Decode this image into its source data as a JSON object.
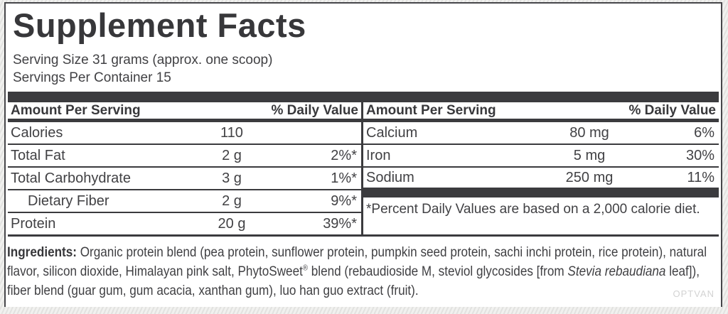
{
  "title": "Supplement Facts",
  "serving": {
    "size": "Serving Size 31 grams (approx. one scoop)",
    "per_container": "Servings Per Container 15"
  },
  "tables": {
    "left": {
      "header": {
        "amount": "Amount Per Serving",
        "daily_value": "% Daily Value"
      },
      "rows": [
        {
          "name": "Calories",
          "amount": "110",
          "dv": ""
        },
        {
          "name": "Total Fat",
          "amount": "2 g",
          "dv": "2%*"
        },
        {
          "name": "Total Carbohydrate",
          "amount": "3 g",
          "dv": "1%*"
        },
        {
          "name": "Dietary Fiber",
          "amount": "2 g",
          "dv": "9%*",
          "indent": true
        },
        {
          "name": "Protein",
          "amount": "20 g",
          "dv": "39%*"
        }
      ]
    },
    "right": {
      "header": {
        "amount": "Amount Per Serving",
        "daily_value": "% Daily Value"
      },
      "rows": [
        {
          "name": "Calcium",
          "amount": "80 mg",
          "dv": "6%"
        },
        {
          "name": "Iron",
          "amount": "5 mg",
          "dv": "30%"
        },
        {
          "name": "Sodium",
          "amount": "250 mg",
          "dv": "11%"
        }
      ],
      "footnote": "*Percent Daily Values are based on a 2,000 calorie diet."
    }
  },
  "ingredients": {
    "label": "Ingredients:",
    "seg1": " Organic protein blend (pea protein, sunflower protein, pumpkin seed protein, sachi inchi protein, rice protein), natural flavor, silicon dioxide, Himalayan pink salt, PhytoSweet",
    "reg": "®",
    "seg2": " blend (rebaudioside M, steviol glycosides [from ",
    "species": "Stevia rebaudiana",
    "seg3": " leaf]), fiber blend (guar gum, gum acacia, xanthan gum), luo han guo extract (fruit)."
  },
  "watermark": "OPTVAN",
  "colors": {
    "text": "#414144",
    "heading": "#37373a",
    "rule": "#3b3b3e",
    "label_background": "#ffffff",
    "page_background": "#ececea",
    "watermark": "#d3d3d3"
  }
}
